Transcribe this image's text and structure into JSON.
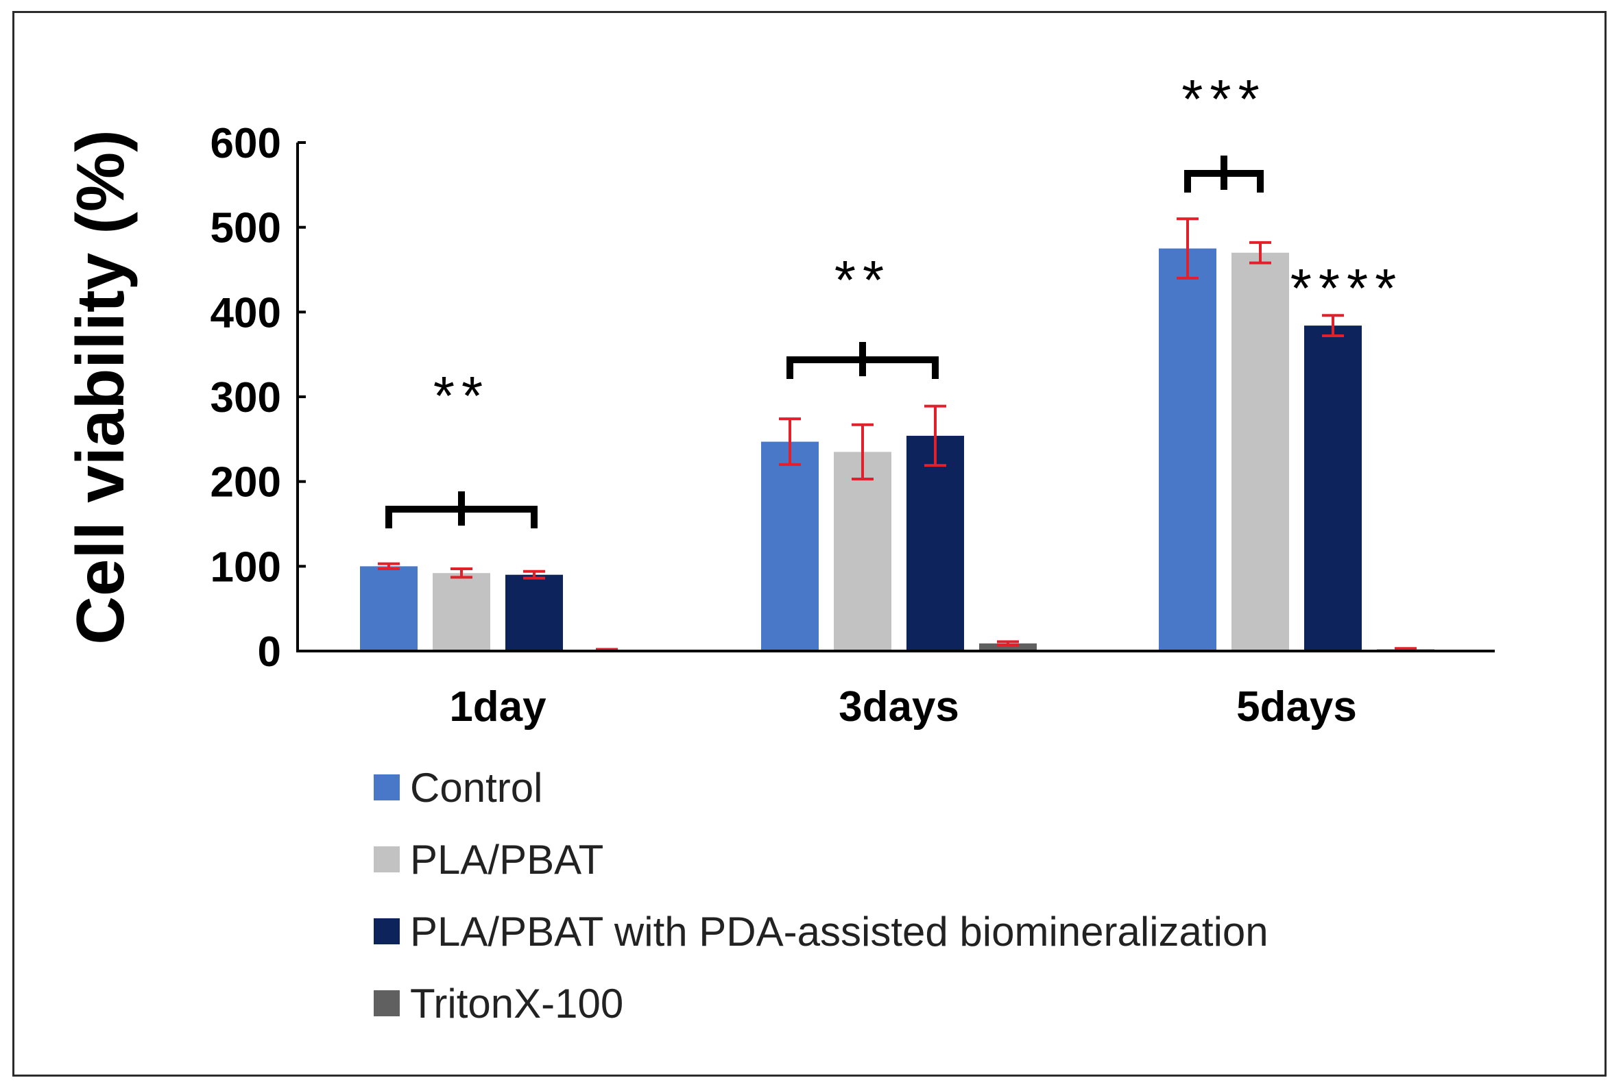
{
  "chart_data": {
    "type": "bar",
    "title": "",
    "xlabel": "",
    "ylabel": "Cell viability (%)",
    "ylim": [
      0,
      600
    ],
    "yticks": [
      0,
      100,
      200,
      300,
      400,
      500,
      600
    ],
    "ytick_labels": [
      "0",
      "100",
      "200",
      "300",
      "400",
      "500",
      "600"
    ],
    "categories": [
      "1day",
      "3days",
      "5days"
    ],
    "grid": false,
    "legend_position": "bottom",
    "series": [
      {
        "name": "Control",
        "color": "#4a78c8",
        "values": [
          100,
          247,
          475
        ],
        "errors": [
          3,
          27,
          35
        ]
      },
      {
        "name": "PLA/PBAT",
        "color": "#c2c2c2",
        "values": [
          92,
          235,
          470
        ],
        "errors": [
          5,
          32,
          12
        ]
      },
      {
        "name": "PLA/PBAT with PDA-assisted biomineralization",
        "color": "#0c235c",
        "values": [
          90,
          254,
          384
        ],
        "errors": [
          4,
          35,
          12
        ]
      },
      {
        "name": "TritonX-100",
        "color": "#606060",
        "values": [
          1,
          9,
          2
        ],
        "errors": [
          1,
          2,
          1
        ]
      }
    ],
    "error_bar_color": "#e0202a",
    "annotations": [
      {
        "text": "**",
        "category": "1day",
        "type": "bracket",
        "from_series": 0,
        "to_series": 2
      },
      {
        "text": "**",
        "category": "3days",
        "type": "bracket",
        "from_series": 0,
        "to_series": 2
      },
      {
        "text": "***",
        "category": "5days",
        "type": "bracket",
        "from_series": 0,
        "to_series": 1
      },
      {
        "text": "****",
        "category": "5days",
        "type": "label",
        "series": 2
      }
    ]
  }
}
